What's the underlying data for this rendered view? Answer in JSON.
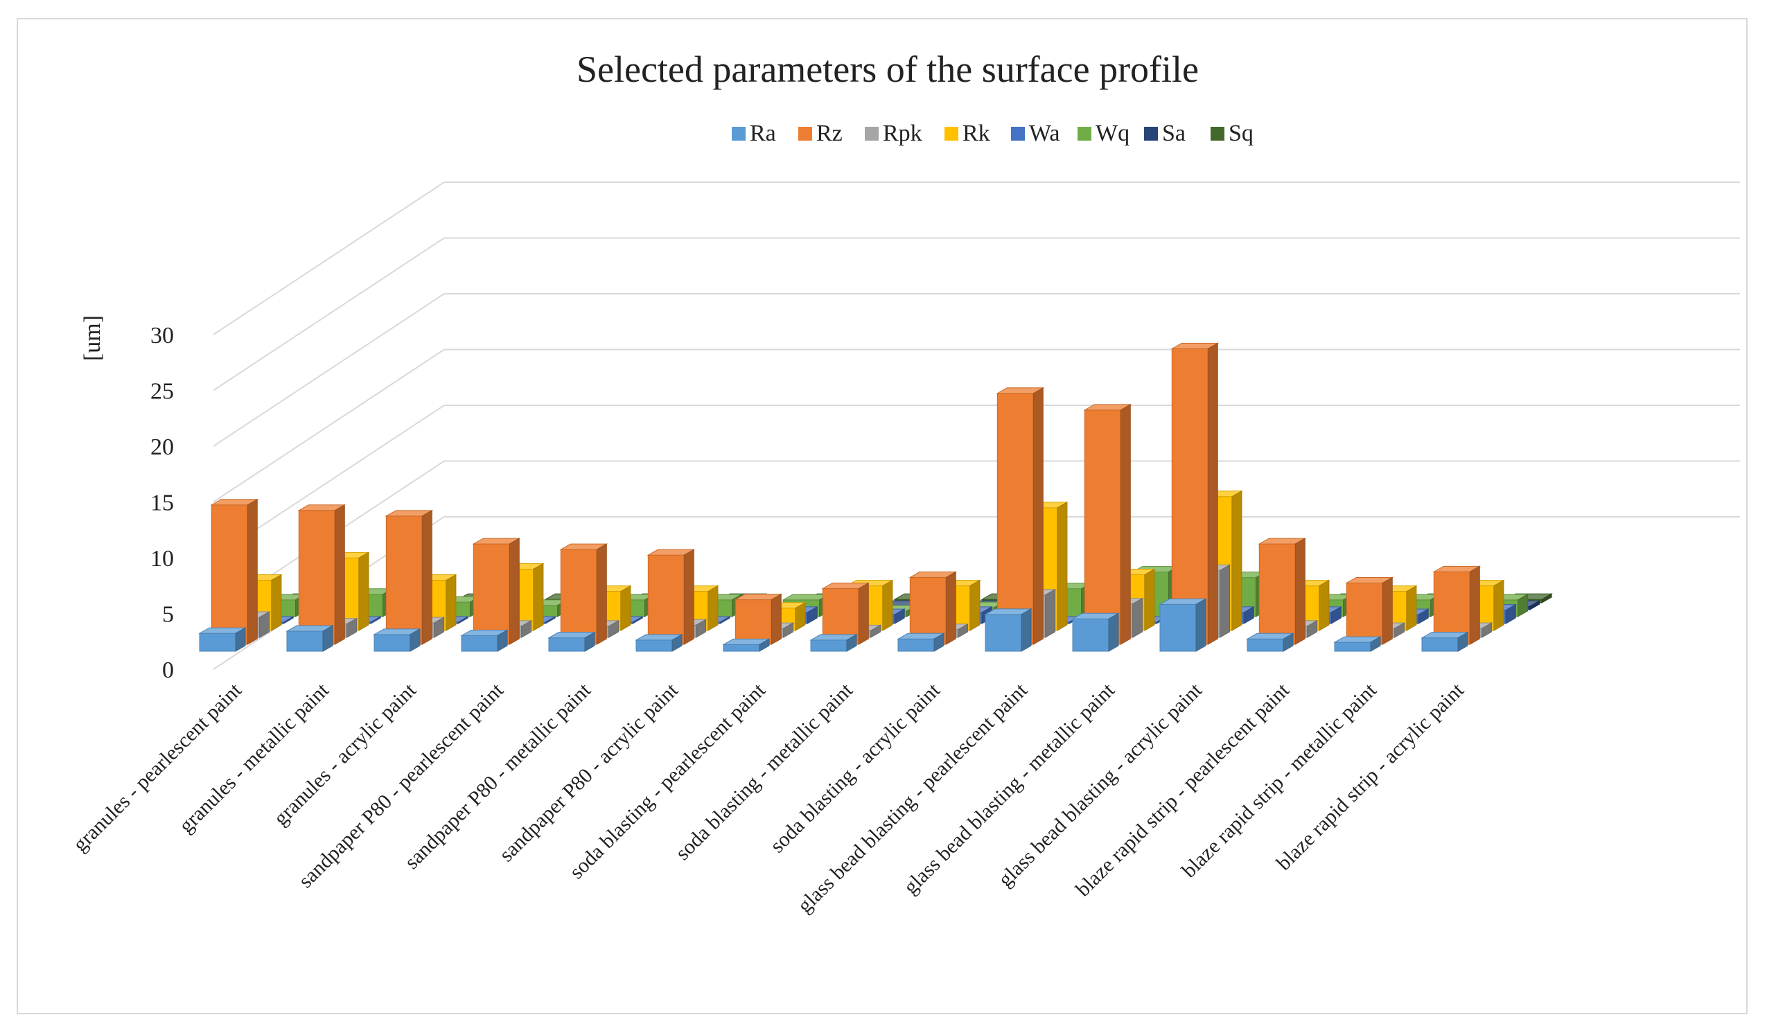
{
  "chart_data": {
    "type": "bar",
    "title": "Selected parameters of the surface profile",
    "ylabel": "[um]",
    "ylim": [
      0,
      30
    ],
    "yticks": [
      "0",
      "5",
      "10",
      "15",
      "20",
      "25",
      "30"
    ],
    "grid": true,
    "legend_position": "top-center",
    "categories": [
      "granules - pearlescent paint",
      "granules - metallic paint",
      "granules - acrylic paint",
      "sandpaper P80 - pearlescent paint",
      "sandpaper P80 - metallic paint",
      "sandpaper P80 - acrylic paint",
      "soda blasting - pearlescent paint",
      "soda blasting - metallic paint",
      "soda blasting - acrylic paint",
      "glass bead blasting - pearlescent paint",
      "glass bead blasting - metallic paint",
      "glass bead blasting - acrylic paint",
      "blaze rapid strip - pearlescent paint",
      "blaze rapid strip - metallic paint",
      "blaze rapid strip - acrylic paint"
    ],
    "series": [
      {
        "name": "Ra",
        "color": "#5b9bd5",
        "values": [
          1.6,
          1.8,
          1.5,
          1.4,
          1.2,
          1.0,
          0.6,
          1.0,
          1.1,
          3.3,
          2.9,
          4.2,
          1.1,
          0.8,
          1.2
        ]
      },
      {
        "name": "Rz",
        "color": "#ed7d31",
        "values": [
          12.5,
          12.0,
          11.5,
          9.0,
          8.5,
          8.0,
          4.0,
          5.0,
          6.0,
          22.5,
          21.0,
          26.5,
          9.0,
          5.5,
          6.5
        ]
      },
      {
        "name": "Rpk",
        "color": "#a5a5a5",
        "values": [
          1.8,
          1.2,
          1.3,
          1.0,
          1.0,
          1.1,
          0.8,
          0.6,
          0.7,
          3.8,
          3.0,
          6.0,
          1.0,
          0.8,
          0.8
        ]
      },
      {
        "name": "Rk",
        "color": "#ffc000",
        "values": [
          4.5,
          6.5,
          4.5,
          5.5,
          3.5,
          3.5,
          2.0,
          4.0,
          4.0,
          11.0,
          5.0,
          12.0,
          4.0,
          3.5,
          4.0
        ]
      },
      {
        "name": "Wa",
        "color": "#4472c4",
        "values": [
          0.1,
          0.1,
          0.1,
          0.1,
          0.1,
          0.1,
          1.0,
          0.8,
          1.0,
          0.1,
          0.1,
          1.0,
          1.0,
          0.8,
          1.2
        ]
      },
      {
        "name": "Wq",
        "color": "#70ad47",
        "values": [
          1.5,
          2.0,
          1.3,
          1.0,
          1.5,
          1.5,
          1.5,
          0.5,
          0.8,
          2.5,
          4.0,
          3.5,
          1.5,
          1.5,
          1.5
        ]
      },
      {
        "name": "Sa",
        "color": "#264478",
        "values": [
          0.3,
          0.3,
          0.3,
          0.3,
          0.3,
          0.3,
          0.3,
          0.3,
          0.3,
          0.3,
          0.3,
          0.3,
          0.3,
          0.3,
          0.3
        ]
      },
      {
        "name": "Sq",
        "color": "#43682b",
        "values": [
          0.3,
          0.3,
          0.3,
          0.3,
          0.3,
          0.3,
          0.3,
          0.3,
          0.3,
          0.3,
          0.3,
          0.3,
          0.3,
          0.3,
          0.3
        ]
      }
    ]
  }
}
